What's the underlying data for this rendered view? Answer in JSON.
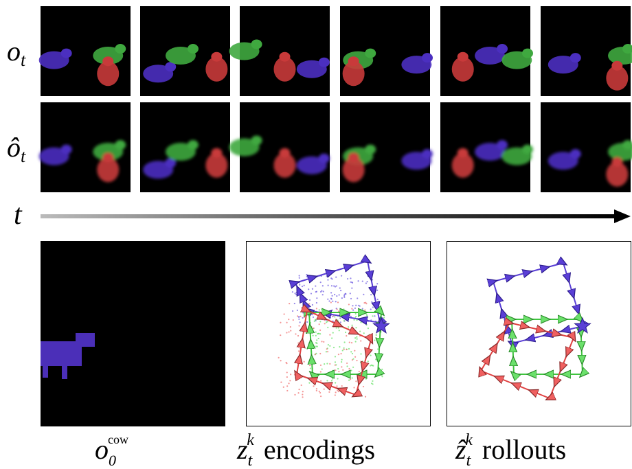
{
  "row_labels": [
    {
      "symbol": "o",
      "sub": "t"
    },
    {
      "symbol": "ô",
      "sub": "t"
    }
  ],
  "time_axis": "t",
  "captions": [
    {
      "symbol": "o",
      "sub": "0",
      "sup": "cow"
    },
    {
      "symbol": "z",
      "sub": "t",
      "sup": "k",
      "text": "encodings"
    },
    {
      "symbol": "ẑ",
      "sub": "t",
      "sup": "k",
      "text": "rollouts"
    }
  ]
}
